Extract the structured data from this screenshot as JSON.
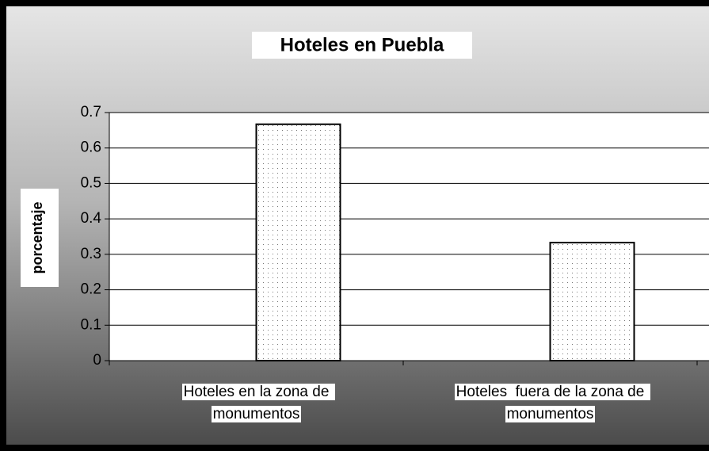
{
  "chart_data": {
    "type": "bar",
    "title": "Hoteles en Puebla",
    "y_label": "porcentaje",
    "categories": [
      "Hoteles en la zona de monumentos",
      "Hoteles  fuera de la zona de monumentos"
    ],
    "values": [
      0.667,
      0.333
    ],
    "color": "#ffffff",
    "ylim": [
      0,
      0.7
    ],
    "yticks": [
      0,
      0.1,
      0.2,
      0.3,
      0.4,
      0.5,
      0.6,
      0.7
    ],
    "grid": true
  }
}
